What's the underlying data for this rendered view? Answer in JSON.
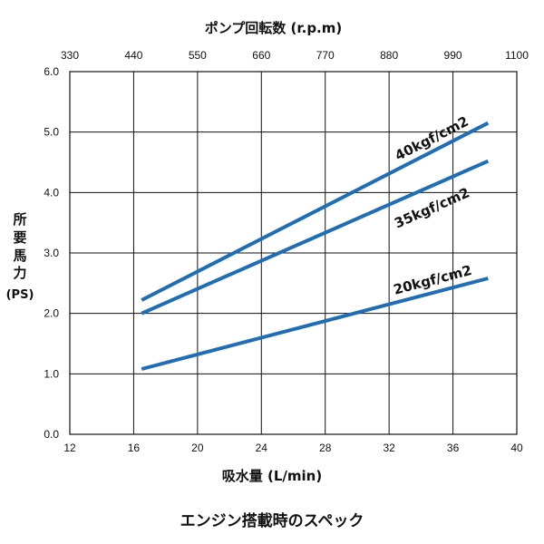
{
  "chart_data": {
    "type": "line",
    "title": "",
    "top_axis": {
      "label": "ポンプ回転数 (r.p.m)",
      "ticks": [
        "330",
        "440",
        "550",
        "660",
        "770",
        "880",
        "990",
        "1100"
      ]
    },
    "xlabel": "吸水量 (L/min)",
    "x_ticks": [
      "12",
      "16",
      "20",
      "24",
      "28",
      "32",
      "36",
      "40"
    ],
    "xlim": [
      12,
      40
    ],
    "ylabel_lines": [
      "所",
      "要",
      "馬",
      "力",
      "(PS)"
    ],
    "y_ticks": [
      "0.0",
      "1.0",
      "2.0",
      "3.0",
      "4.0",
      "5.0",
      "6.0"
    ],
    "ylim": [
      0,
      6
    ],
    "grid": true,
    "line_color": "#1f6db5",
    "series": [
      {
        "name": "40kgf/cm2",
        "x": [
          16.5,
          38.2
        ],
        "y": [
          2.22,
          5.15
        ]
      },
      {
        "name": "35kgf/cm2",
        "x": [
          16.5,
          38.2
        ],
        "y": [
          2.0,
          4.52
        ]
      },
      {
        "name": "20kgf/cm2",
        "x": [
          16.5,
          38.2
        ],
        "y": [
          1.08,
          2.58
        ]
      }
    ]
  },
  "caption": "エンジン搭載時のスペック"
}
